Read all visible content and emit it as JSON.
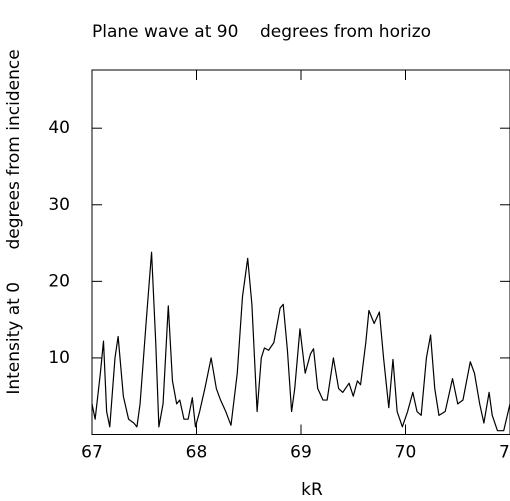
{
  "chart_data": {
    "type": "line",
    "title": "Plane wave at 90    degrees from horizo",
    "x_label": "kR",
    "y_label": "Intensity at 0      degrees from incidence",
    "xlim": [
      67,
      71
    ],
    "ylim": [
      0,
      47.6
    ],
    "xticks": [
      67,
      68,
      69,
      70,
      {
        "value": 71,
        "label": "7"
      }
    ],
    "yticks": [
      10,
      20,
      30,
      40
    ],
    "color": "#000000",
    "x": [
      67.0,
      67.03,
      67.08,
      67.11,
      67.14,
      67.17,
      67.22,
      67.25,
      67.3,
      67.35,
      67.4,
      67.43,
      67.46,
      67.52,
      67.57,
      67.61,
      67.64,
      67.68,
      67.73,
      67.77,
      67.81,
      67.84,
      67.88,
      67.92,
      67.96,
      67.99,
      68.03,
      68.08,
      68.14,
      68.19,
      68.23,
      68.28,
      68.33,
      68.39,
      68.44,
      68.49,
      68.53,
      68.58,
      68.62,
      68.65,
      68.69,
      68.74,
      68.8,
      68.83,
      68.87,
      68.91,
      68.94,
      68.99,
      69.04,
      69.09,
      69.12,
      69.16,
      69.21,
      69.25,
      69.31,
      69.36,
      69.4,
      69.46,
      69.5,
      69.54,
      69.57,
      69.62,
      69.65,
      69.7,
      69.75,
      69.79,
      69.84,
      69.88,
      69.92,
      69.97,
      70.02,
      70.07,
      70.11,
      70.15,
      70.2,
      70.24,
      70.28,
      70.32,
      70.38,
      70.45,
      70.5,
      70.55,
      70.62,
      70.66,
      70.71,
      70.75,
      70.8,
      70.83,
      70.88,
      70.94,
      71.0
    ],
    "values": [
      4,
      2,
      8,
      12.2,
      3,
      1,
      10,
      12.8,
      5,
      2,
      1.5,
      1,
      4,
      15,
      23.8,
      12,
      1,
      4,
      16.8,
      7,
      4,
      4.5,
      2,
      2,
      4.8,
      1,
      3,
      6,
      10,
      6,
      4.5,
      3,
      1.2,
      8,
      18,
      23,
      17,
      3,
      10,
      11.3,
      11,
      12,
      16.5,
      17,
      11,
      3,
      6,
      13.8,
      8,
      10.5,
      11.2,
      6,
      4.5,
      4.5,
      10,
      6,
      5.5,
      6.7,
      5,
      7,
      6.5,
      12,
      16.2,
      14.5,
      16,
      10,
      3.5,
      9.8,
      3,
      1,
      3,
      5.5,
      3,
      2.5,
      10,
      13,
      6,
      2.5,
      3,
      7.3,
      4,
      4.5,
      9.5,
      8,
      4,
      1.5,
      5.5,
      2.5,
      0.5,
      0.5,
      4
    ]
  }
}
